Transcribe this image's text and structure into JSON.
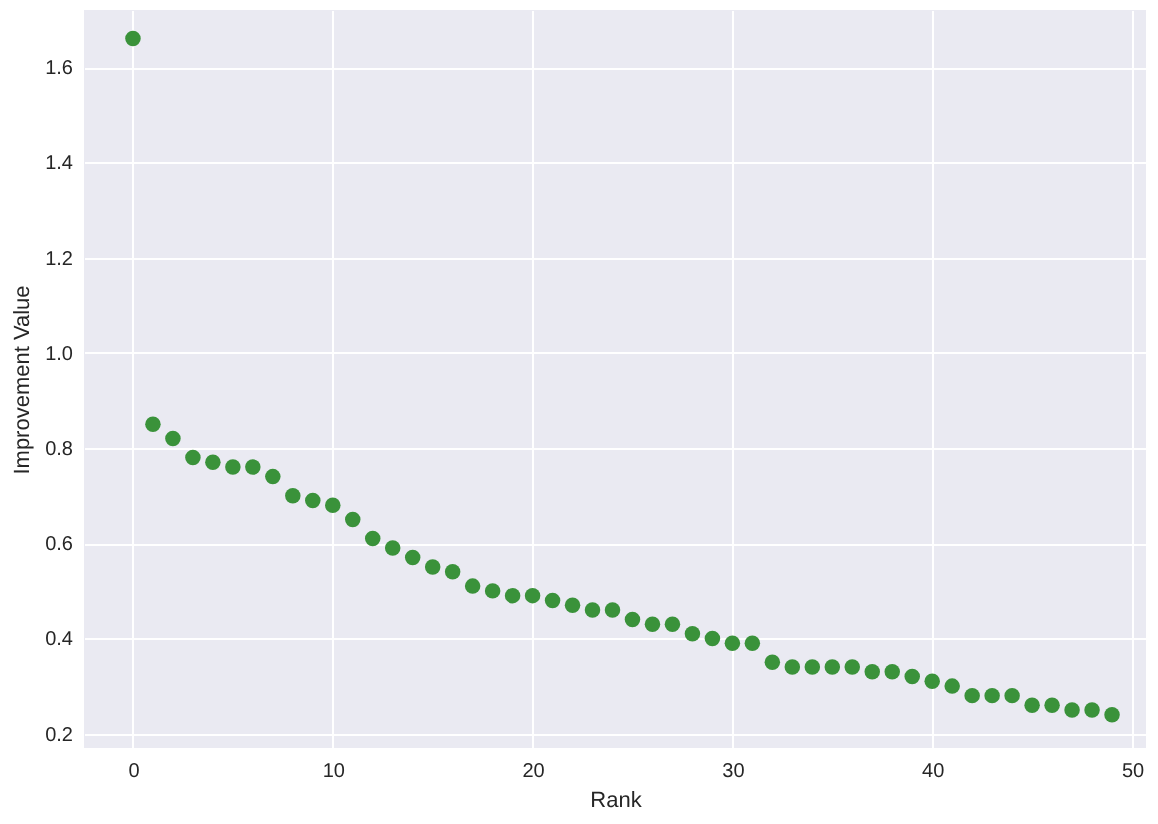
{
  "chart_data": {
    "type": "scatter",
    "xlabel": "Rank",
    "ylabel": "Improvement Value",
    "x": [
      0,
      1,
      2,
      3,
      4,
      5,
      6,
      7,
      8,
      9,
      10,
      11,
      12,
      13,
      14,
      15,
      16,
      17,
      18,
      19,
      20,
      21,
      22,
      23,
      24,
      25,
      26,
      27,
      28,
      29,
      30,
      31,
      32,
      33,
      34,
      35,
      36,
      37,
      38,
      39,
      40,
      41,
      42,
      43,
      44,
      45,
      46,
      47,
      48,
      49
    ],
    "series": [
      {
        "color": "#3a923a",
        "values": [
          1.66,
          0.85,
          0.82,
          0.78,
          0.77,
          0.76,
          0.76,
          0.74,
          0.7,
          0.69,
          0.68,
          0.65,
          0.61,
          0.59,
          0.57,
          0.55,
          0.54,
          0.51,
          0.5,
          0.49,
          0.49,
          0.48,
          0.47,
          0.46,
          0.46,
          0.44,
          0.43,
          0.43,
          0.41,
          0.4,
          0.39,
          0.39,
          0.35,
          0.34,
          0.34,
          0.34,
          0.34,
          0.33,
          0.33,
          0.32,
          0.31,
          0.3,
          0.28,
          0.28,
          0.28,
          0.26,
          0.26,
          0.25,
          0.25,
          0.24
        ]
      }
    ],
    "xlim": [
      -2.45,
      50.7
    ],
    "ylim": [
      0.17,
      1.72
    ],
    "xticks": [
      0,
      10,
      20,
      30,
      40,
      50
    ],
    "yticks": [
      0.2,
      0.4,
      0.6,
      0.8,
      {
        "value": 1.0,
        "label": "1.0"
      },
      1.2,
      1.4,
      1.6
    ],
    "grid": true,
    "marker": "circle"
  }
}
